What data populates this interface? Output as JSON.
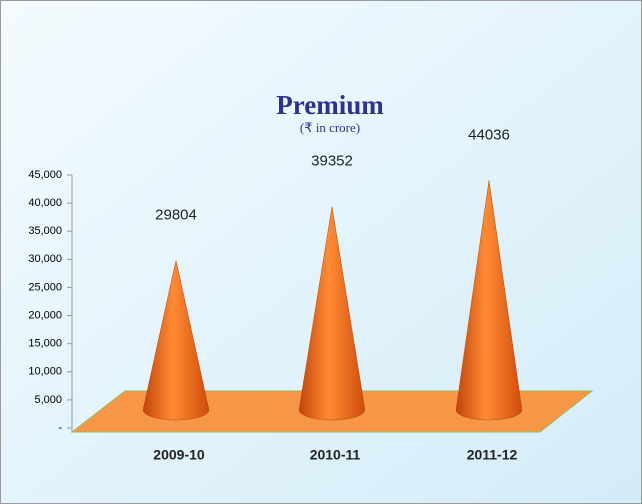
{
  "chart_data": {
    "type": "bar",
    "title": "Premium",
    "subtitle": "(₹ in crore)",
    "categories": [
      "2009-10",
      "2010-11",
      "2011-12"
    ],
    "values": [
      29804,
      39352,
      44036
    ],
    "color": "#f07a25",
    "ylim": [
      0,
      45000
    ],
    "yticks": [
      {
        "value": 0,
        "label": "-"
      },
      {
        "value": 5000,
        "label": "5,000"
      },
      {
        "value": 10000,
        "label": "10,000"
      },
      {
        "value": 15000,
        "label": "15,000"
      },
      {
        "value": 20000,
        "label": "20,000"
      },
      {
        "value": 25000,
        "label": "25,000"
      },
      {
        "value": 30000,
        "label": "30,000"
      },
      {
        "value": 35000,
        "label": "35,000"
      },
      {
        "value": 40000,
        "label": "40,000"
      },
      {
        "value": 45000,
        "label": "45,000"
      }
    ]
  }
}
